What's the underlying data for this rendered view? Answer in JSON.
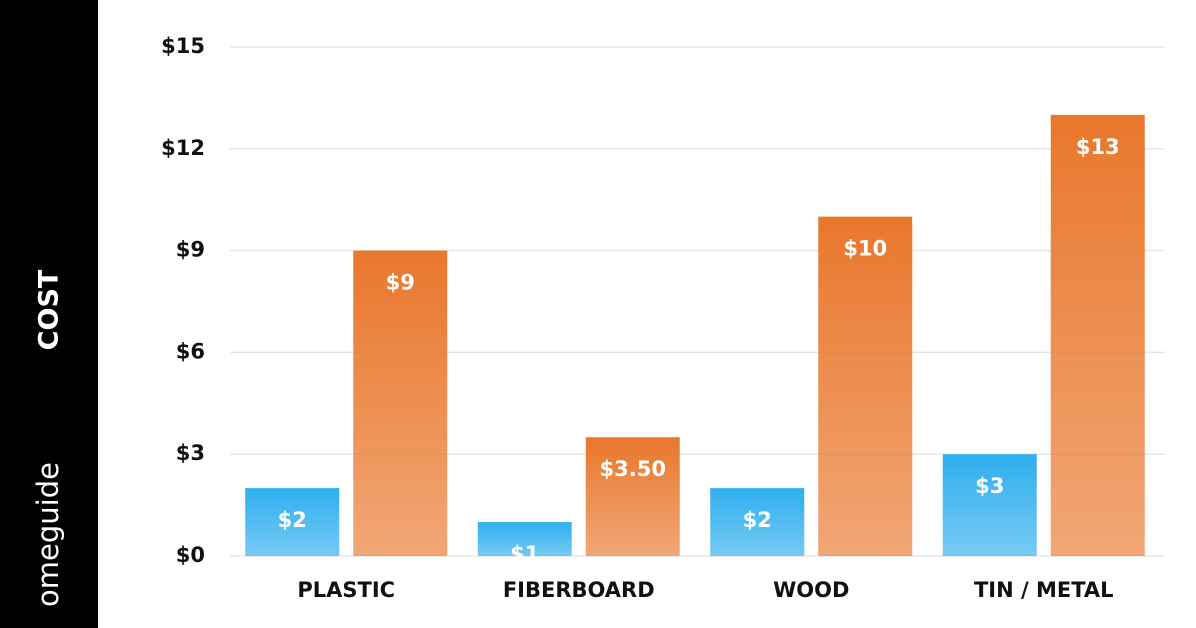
{
  "chart_data": {
    "type": "bar",
    "y_label": "COST",
    "logo": "omeguide",
    "categories": [
      "PLASTIC",
      "FIBERBOARD",
      "WOOD",
      "TIN / METAL"
    ],
    "series": [
      {
        "color": "#2eaeee",
        "values": [
          2,
          1,
          2,
          3
        ],
        "value_labels": [
          "$2",
          "$1",
          "$2",
          "$3"
        ]
      },
      {
        "color": "#e9772c",
        "values": [
          9,
          3.5,
          10,
          13
        ],
        "value_labels": [
          "$9",
          "$3.50",
          "$10",
          "$13"
        ]
      }
    ],
    "ylim": [
      0,
      15
    ],
    "yticks": [
      {
        "value": 0,
        "label": "$0"
      },
      {
        "value": 3,
        "label": "$3"
      },
      {
        "value": 6,
        "label": "$6"
      },
      {
        "value": 9,
        "label": "$9"
      },
      {
        "value": 12,
        "label": "$12"
      },
      {
        "value": 15,
        "label": "$15"
      }
    ],
    "grid": true
  }
}
